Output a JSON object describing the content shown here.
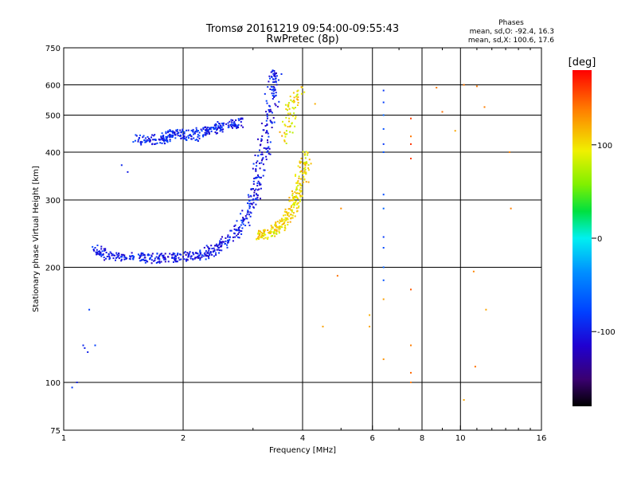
{
  "chart_data": {
    "type": "scatter",
    "title": "Tromsø 20161219 09:54:00-09:55:43",
    "subtitle": "RwPretec (8p)",
    "xlabel": "Frequency [MHz]",
    "ylabel": "Stationary phase Virtual Height [km]",
    "x_scale": "log",
    "y_scale": "log",
    "xlim": [
      1,
      16
    ],
    "ylim": [
      75,
      750
    ],
    "x_ticks": [
      1,
      2,
      4,
      6,
      8,
      10,
      16
    ],
    "x_tick_labels": [
      "1",
      "2",
      "4",
      "6",
      "8",
      "10",
      "16"
    ],
    "x_grid": [
      2,
      4,
      6,
      8,
      10
    ],
    "y_ticks": [
      75,
      100,
      200,
      300,
      400,
      500,
      600,
      750
    ],
    "y_tick_labels": [
      "75",
      "100",
      "200",
      "300",
      "400",
      "500",
      "600",
      "750"
    ],
    "y_grid": [
      100,
      200,
      300,
      400,
      500,
      600
    ],
    "grid": true,
    "phases_info": {
      "header": "Phases",
      "line1": "mean, sd,O: -92.4, 16.3",
      "line2": "mean, sd,X: 100.6, 17.6"
    },
    "colorbar": {
      "label": "[deg]",
      "range": [
        -180,
        180
      ],
      "ticks": [
        100,
        0,
        -100
      ],
      "tick_labels": [
        "100",
        "0",
        "-100"
      ]
    },
    "series": [
      {
        "trace": "o-mode",
        "phase": -100,
        "x": [
          1.2,
          1.24,
          1.3,
          1.4,
          1.5,
          1.6,
          1.7,
          1.8,
          1.9,
          2.0,
          2.1,
          2.2,
          2.3,
          2.4,
          2.5,
          2.6,
          2.7,
          2.8,
          2.9,
          3.0,
          3.05,
          3.1,
          3.15,
          3.2,
          3.25,
          3.3,
          3.35,
          3.38,
          3.4
        ],
        "y": [
          225,
          218,
          214,
          213,
          212,
          212,
          211,
          212,
          212,
          213,
          214,
          215,
          218,
          222,
          228,
          235,
          245,
          258,
          275,
          300,
          320,
          345,
          375,
          410,
          455,
          510,
          570,
          620,
          645
        ]
      },
      {
        "trace": "x-mode",
        "phase": 100,
        "x": [
          3.1,
          3.2,
          3.3,
          3.4,
          3.5,
          3.6,
          3.7,
          3.8,
          3.85,
          3.9,
          3.95,
          4.0,
          4.03,
          4.05
        ],
        "y": [
          240,
          243,
          246,
          250,
          256,
          263,
          272,
          287,
          298,
          312,
          330,
          352,
          375,
          395
        ]
      },
      {
        "trace": "x-mode-upper",
        "phase": 100,
        "x": [
          3.6,
          3.7,
          3.8,
          3.9
        ],
        "y": [
          430,
          490,
          540,
          580
        ]
      },
      {
        "trace": "sporadic-layer",
        "phase": -95,
        "x": [
          1.55,
          1.6,
          1.7,
          1.8,
          1.85,
          1.9,
          2.0,
          2.1,
          2.2,
          2.3,
          2.4,
          2.5,
          2.6,
          2.7,
          2.8
        ],
        "y": [
          435,
          430,
          432,
          430,
          445,
          448,
          445,
          440,
          450,
          455,
          460,
          465,
          470,
          475,
          480
        ]
      },
      {
        "trace": "low-echoes",
        "phase": -90,
        "x": [
          1.05,
          1.08,
          1.12,
          1.13,
          1.15,
          1.16,
          1.2,
          1.4,
          1.45
        ],
        "y": [
          97,
          100,
          125,
          123,
          120,
          155,
          125,
          370,
          355
        ]
      },
      {
        "trace": "interference-6.4MHz",
        "phase": -75,
        "x": [
          6.4,
          6.4,
          6.4,
          6.4,
          6.4,
          6.4,
          6.4,
          6.4,
          6.4,
          6.4,
          6.4,
          6.4
        ],
        "y": [
          580,
          540,
          500,
          460,
          420,
          400,
          310,
          285,
          240,
          225,
          200,
          185
        ]
      },
      {
        "trace": "interference-7.5MHz",
        "phase": 150,
        "x": [
          7.5,
          7.5,
          7.5,
          7.5,
          7.5,
          7.5,
          7.5,
          7.5
        ],
        "y": [
          490,
          440,
          420,
          385,
          175,
          125,
          106,
          100
        ]
      },
      {
        "trace": "scattered",
        "phase": 130,
        "x": [
          4.3,
          5.0,
          5.9,
          5.9,
          6.4,
          6.4,
          8.7,
          9.0,
          9.7,
          10.2,
          10.8,
          10.9,
          11.5,
          11.6,
          13.3,
          13.4,
          10.2,
          11.0,
          4.9,
          4.5
        ],
        "y": [
          535,
          285,
          150,
          140,
          165,
          115,
          590,
          510,
          455,
          600,
          195,
          110,
          525,
          155,
          400,
          285,
          90,
          595,
          190,
          140
        ]
      }
    ]
  }
}
